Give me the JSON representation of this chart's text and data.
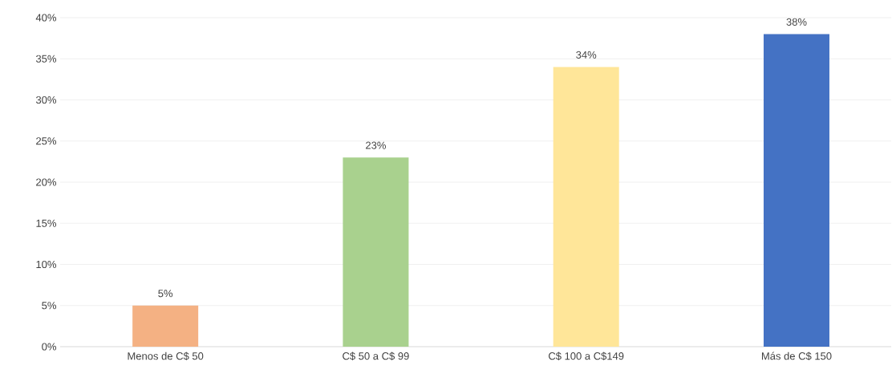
{
  "chart_data": {
    "type": "bar",
    "categories": [
      "Menos de C$ 50",
      "C$ 50 a C$ 99",
      "C$ 100 a C$149",
      "Más de C$ 150"
    ],
    "values": [
      5,
      23,
      34,
      38
    ],
    "colors": [
      "#f4b183",
      "#a9d18e",
      "#ffe699",
      "#4472c4"
    ],
    "value_labels": [
      "5%",
      "23%",
      "34%",
      "38%"
    ],
    "ylim": [
      0,
      40
    ],
    "yticks": [
      {
        "value": 0,
        "label": "0%"
      },
      {
        "value": 5,
        "label": "5%"
      },
      {
        "value": 10,
        "label": "10%"
      },
      {
        "value": 15,
        "label": "15%"
      },
      {
        "value": 20,
        "label": "20%"
      },
      {
        "value": 25,
        "label": "25%"
      },
      {
        "value": 30,
        "label": "30%"
      },
      {
        "value": 35,
        "label": "35%"
      },
      {
        "value": 40,
        "label": "40%"
      }
    ],
    "grid": "y"
  }
}
